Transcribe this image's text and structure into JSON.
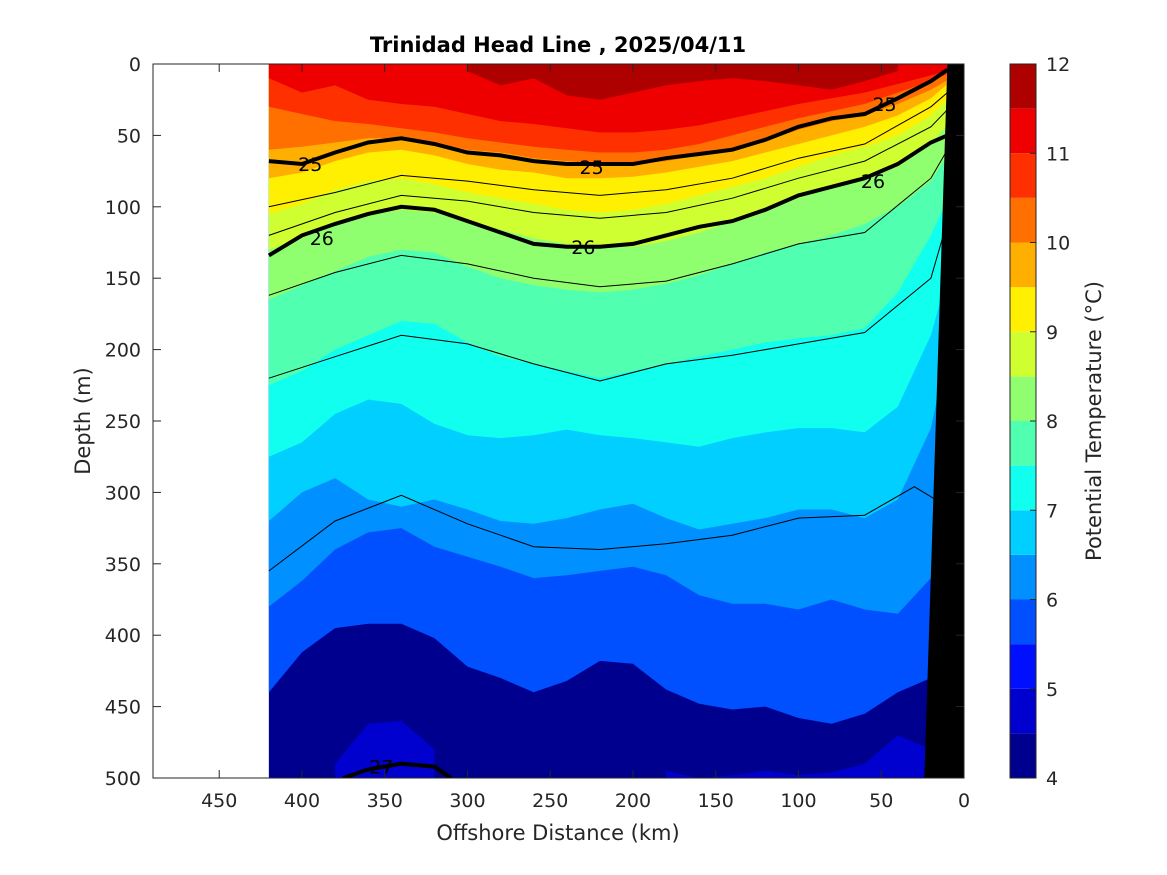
{
  "chart_data": {
    "type": "contour-section",
    "title": "Trinidad Head Line , 2025/04/11",
    "xlabel": "Offshore Distance (km)",
    "ylabel": "Depth (m)",
    "colorbar_label": "Potential Temperature (°C)",
    "xlim": [
      490,
      0
    ],
    "ylim": [
      0,
      500
    ],
    "x_reversed": true,
    "y_reversed": true,
    "x_ticks": [
      "450",
      "400",
      "350",
      "300",
      "250",
      "200",
      "150",
      "100",
      "50",
      "0"
    ],
    "x_tick_values": [
      450,
      400,
      350,
      300,
      250,
      200,
      150,
      100,
      50,
      0
    ],
    "y_ticks": [
      "0",
      "50",
      "100",
      "150",
      "200",
      "250",
      "300",
      "350",
      "400",
      "450",
      "500"
    ],
    "y_tick_values": [
      0,
      50,
      100,
      150,
      200,
      250,
      300,
      350,
      400,
      450,
      500
    ],
    "colorbar_ticks": [
      "4",
      "5",
      "6",
      "7",
      "8",
      "9",
      "10",
      "11",
      "12"
    ],
    "colorbar_tick_values": [
      4,
      5,
      6,
      7,
      8,
      9,
      10,
      11,
      12
    ],
    "colorbar_range": [
      4,
      12
    ],
    "data_extent_km": [
      0,
      420
    ],
    "levels": [
      4.0,
      4.5,
      5.0,
      5.5,
      6.0,
      6.5,
      7.0,
      7.5,
      8.0,
      8.5,
      9.0,
      9.5,
      10.0,
      10.5,
      11.0,
      11.5,
      12.0
    ],
    "level_colors": [
      "#00008F",
      "#0000CF",
      "#0010FF",
      "#0050FF",
      "#0090FF",
      "#00CFFF",
      "#10FFEF",
      "#50FFAF",
      "#8FFF70",
      "#CFFF30",
      "#FFEF00",
      "#FFAF00",
      "#FF7000",
      "#FF3000",
      "#EF0000",
      "#AF0000"
    ],
    "x_profile_km": [
      420,
      400,
      380,
      360,
      340,
      320,
      300,
      280,
      260,
      240,
      220,
      200,
      180,
      160,
      140,
      120,
      100,
      80,
      60,
      40,
      20,
      8
    ],
    "isotherms_depth_m": {
      "11.5": [
        null,
        null,
        null,
        null,
        null,
        null,
        5,
        15,
        10,
        22,
        25,
        20,
        15,
        12,
        10,
        12,
        15,
        18,
        12,
        5,
        null,
        null
      ],
      "11.0": [
        10,
        20,
        15,
        25,
        28,
        30,
        35,
        40,
        42,
        45,
        48,
        48,
        46,
        43,
        38,
        33,
        28,
        24,
        20,
        14,
        8,
        4
      ],
      "10.5": [
        30,
        35,
        40,
        42,
        45,
        48,
        52,
        55,
        58,
        60,
        62,
        62,
        60,
        56,
        50,
        44,
        38,
        33,
        28,
        20,
        12,
        6
      ],
      "10.0": [
        60,
        58,
        55,
        52,
        52,
        56,
        60,
        62,
        66,
        68,
        70,
        70,
        68,
        64,
        60,
        54,
        46,
        40,
        36,
        28,
        18,
        10
      ],
      "9.5": [
        80,
        76,
        68,
        62,
        60,
        64,
        70,
        74,
        76,
        80,
        80,
        79,
        76,
        72,
        68,
        62,
        56,
        50,
        44,
        36,
        24,
        12
      ],
      "9.0": [
        105,
        98,
        88,
        82,
        80,
        84,
        90,
        94,
        98,
        102,
        104,
        102,
        98,
        92,
        86,
        80,
        72,
        64,
        58,
        50,
        36,
        22
      ],
      "8.5": [
        130,
        122,
        112,
        106,
        102,
        104,
        110,
        116,
        122,
        126,
        128,
        128,
        124,
        118,
        110,
        102,
        94,
        86,
        80,
        72,
        56,
        40
      ],
      "8.0": [
        165,
        155,
        145,
        135,
        130,
        132,
        142,
        150,
        155,
        158,
        160,
        158,
        154,
        148,
        140,
        132,
        126,
        120,
        112,
        100,
        82,
        60
      ],
      "7.5": [
        225,
        215,
        200,
        190,
        180,
        182,
        195,
        205,
        210,
        215,
        220,
        215,
        210,
        205,
        200,
        195,
        192,
        190,
        185,
        160,
        120,
        90
      ],
      "7.0": [
        275,
        265,
        245,
        235,
        238,
        252,
        260,
        262,
        260,
        256,
        260,
        262,
        265,
        268,
        262,
        258,
        255,
        255,
        258,
        240,
        190,
        140
      ],
      "6.5": [
        320,
        300,
        290,
        305,
        310,
        305,
        312,
        320,
        322,
        318,
        312,
        308,
        318,
        326,
        322,
        318,
        312,
        312,
        318,
        305,
        255,
        190
      ],
      "6.0": [
        380,
        362,
        340,
        328,
        325,
        338,
        345,
        352,
        360,
        358,
        355,
        352,
        358,
        372,
        378,
        378,
        382,
        375,
        382,
        385,
        360,
        300
      ],
      "5.5": [
        440,
        412,
        395,
        392,
        392,
        402,
        422,
        430,
        440,
        432,
        418,
        420,
        438,
        448,
        452,
        450,
        458,
        462,
        455,
        440,
        430,
        400
      ],
      "5.0": [
        null,
        null,
        490,
        462,
        460,
        480,
        null,
        null,
        null,
        null,
        null,
        null,
        495,
        500,
        498,
        495,
        498,
        496,
        490,
        470,
        480,
        460
      ],
      "4.5": [
        null,
        null,
        null,
        485,
        480,
        498,
        null,
        null,
        null,
        null,
        null,
        null,
        null,
        null,
        null,
        null,
        null,
        null,
        null,
        null,
        null,
        null
      ]
    },
    "density_contours": [
      {
        "label": "25",
        "x_km": [
          420,
          400,
          380,
          360,
          340,
          320,
          300,
          280,
          260,
          240,
          220,
          200,
          180,
          160,
          140,
          120,
          100,
          80,
          60,
          40,
          20,
          10
        ],
        "depth_m": [
          68,
          70,
          62,
          55,
          52,
          56,
          62,
          64,
          68,
          70,
          70,
          70,
          66,
          63,
          60,
          53,
          44,
          38,
          35,
          24,
          12,
          4
        ]
      },
      {
        "label": "26",
        "x_km": [
          420,
          400,
          380,
          360,
          340,
          320,
          300,
          280,
          260,
          240,
          220,
          200,
          180,
          160,
          140,
          120,
          100,
          80,
          60,
          40,
          20,
          10
        ],
        "depth_m": [
          134,
          120,
          112,
          105,
          100,
          102,
          110,
          118,
          126,
          128,
          128,
          126,
          120,
          114,
          110,
          102,
          92,
          86,
          80,
          70,
          55,
          50
        ]
      },
      {
        "label": "27",
        "x_km": [
          375,
          360,
          340,
          320,
          310
        ],
        "depth_m": [
          500,
          494,
          490,
          492,
          500
        ]
      }
    ],
    "density_contour_labels": [
      {
        "text": "25",
        "x_km": 395,
        "depth_m": 70
      },
      {
        "text": "25",
        "x_km": 225,
        "depth_m": 72
      },
      {
        "text": "25",
        "x_km": 48,
        "depth_m": 28
      },
      {
        "text": "26",
        "x_km": 388,
        "depth_m": 122
      },
      {
        "text": "26",
        "x_km": 230,
        "depth_m": 128
      },
      {
        "text": "26",
        "x_km": 55,
        "depth_m": 82
      },
      {
        "text": "27",
        "x_km": 352,
        "depth_m": 492
      }
    ],
    "thin_isopycnals_depth_m": [
      [
        420,
        100,
        380,
        90,
        340,
        78,
        300,
        82,
        260,
        88,
        220,
        92,
        180,
        88,
        140,
        80,
        100,
        66,
        60,
        56,
        20,
        30,
        10,
        20
      ],
      [
        420,
        120,
        380,
        104,
        340,
        92,
        300,
        96,
        260,
        104,
        220,
        108,
        180,
        104,
        140,
        94,
        100,
        80,
        60,
        68,
        20,
        44,
        10,
        32
      ],
      [
        420,
        162,
        380,
        146,
        340,
        134,
        300,
        140,
        260,
        150,
        220,
        156,
        180,
        152,
        140,
        140,
        100,
        126,
        60,
        118,
        20,
        80,
        10,
        60
      ],
      [
        420,
        220,
        380,
        205,
        340,
        190,
        300,
        196,
        260,
        210,
        220,
        222,
        180,
        210,
        140,
        204,
        100,
        196,
        60,
        188,
        20,
        150,
        10,
        110
      ],
      [
        420,
        355,
        380,
        320,
        340,
        302,
        300,
        322,
        260,
        338,
        220,
        340,
        180,
        336,
        140,
        330,
        100,
        318,
        60,
        316,
        30,
        296,
        10,
        310
      ]
    ],
    "bathymetry_km_depth": [
      [
        10,
        0
      ],
      [
        24,
        500
      ],
      [
        0,
        500
      ],
      [
        0,
        0
      ]
    ]
  }
}
